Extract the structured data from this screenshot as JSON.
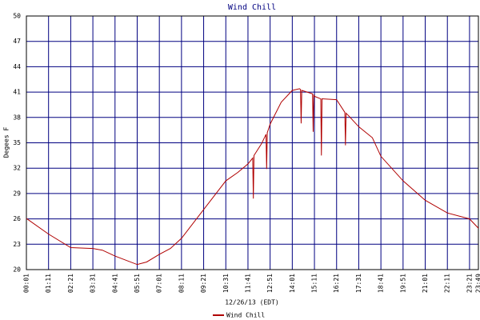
{
  "chart_data": {
    "type": "line",
    "title": "Wind Chill",
    "xlabel": "12/26/13 (EDT)",
    "ylabel": "Degees F",
    "x": [
      "00:01",
      "01:11",
      "02:21",
      "03:31",
      "04:01",
      "04:41",
      "05:51",
      "06:21",
      "07:01",
      "07:36",
      "08:11",
      "09:21",
      "10:31",
      "11:09",
      "11:41",
      "11:56",
      "11:58",
      "12:00",
      "12:24",
      "12:38",
      "12:40",
      "12:42",
      "12:51",
      "13:26",
      "14:01",
      "14:24",
      "14:27",
      "14:29",
      "14:31",
      "15:05",
      "15:07",
      "15:09",
      "15:11",
      "15:31",
      "15:33",
      "15:35",
      "16:21",
      "16:47",
      "16:49",
      "16:51",
      "16:59",
      "17:31",
      "18:14",
      "18:41",
      "19:51",
      "21:01",
      "22:11",
      "23:21",
      "23:49"
    ],
    "series": [
      {
        "name": "Wind Chill",
        "color": "#b00000",
        "values": [
          26.05,
          24.2,
          22.6,
          22.5,
          22.3,
          21.6,
          20.6,
          20.9,
          21.8,
          22.5,
          23.7,
          27.1,
          30.5,
          31.5,
          32.5,
          33.2,
          28.4,
          33.5,
          34.9,
          36.0,
          31.9,
          36.2,
          37.2,
          39.8,
          41.2,
          41.4,
          41.3,
          37.3,
          41.2,
          40.8,
          36.3,
          40.7,
          40.5,
          40.2,
          33.5,
          40.2,
          40.1,
          38.6,
          34.7,
          38.5,
          38.2,
          36.9,
          35.6,
          33.4,
          30.5,
          28.2,
          26.7,
          26.0,
          24.9
        ]
      }
    ],
    "xlim": [
      "00:01",
      "23:49"
    ],
    "xticks": [
      "00:01",
      "01:11",
      "02:21",
      "03:31",
      "04:41",
      "05:51",
      "07:01",
      "08:11",
      "09:21",
      "10:31",
      "11:41",
      "12:51",
      "14:01",
      "15:11",
      "16:21",
      "17:31",
      "18:41",
      "19:51",
      "21:01",
      "22:11",
      "23:21",
      "23:49"
    ],
    "ylim": [
      20,
      50
    ],
    "yticks": [
      20,
      23,
      26,
      29,
      32,
      35,
      38,
      41,
      44,
      47,
      50
    ],
    "grid": true
  }
}
